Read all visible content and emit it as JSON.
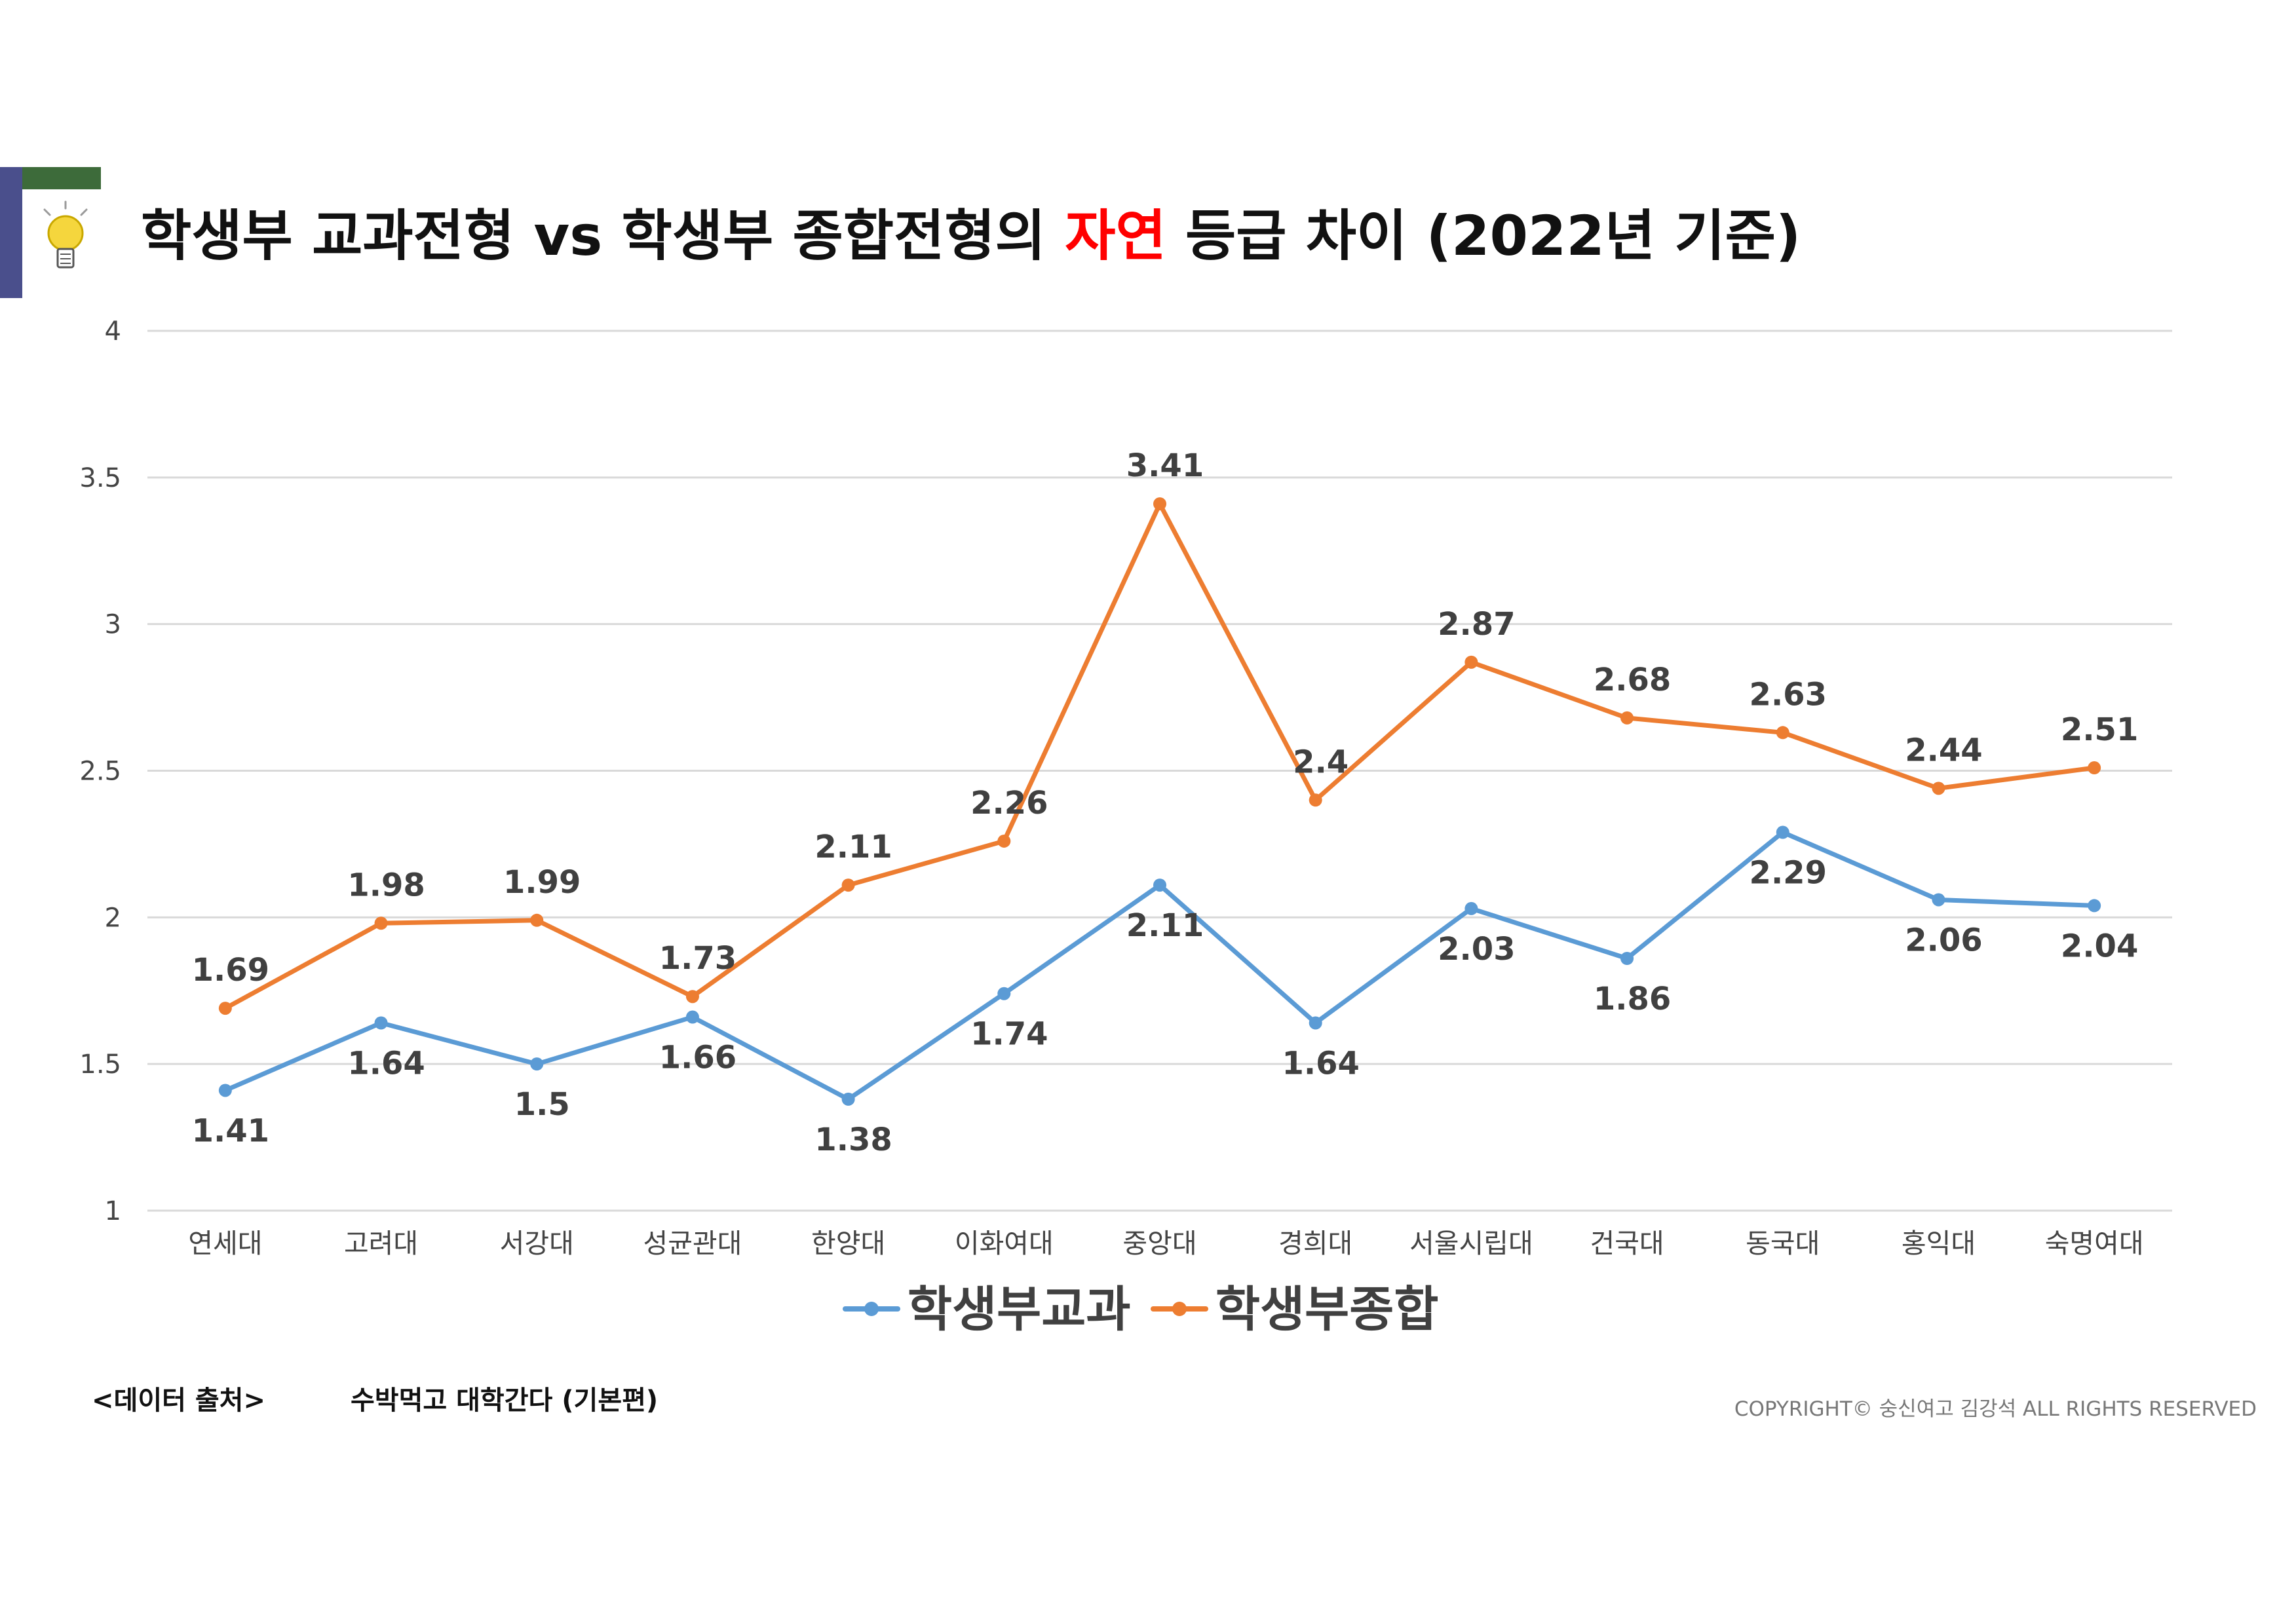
{
  "title": {
    "prefix": "학생부 교과전형 vs 학생부 종합전형의",
    "accent": "자연",
    "suffix": "등급 차이 (2022년 기준)"
  },
  "colors": {
    "accent": "#ff0000",
    "series1": "#5b9bd5",
    "series2": "#ed7d31",
    "grid": "#d9d9d9",
    "deco_blue": "#4a4f8c",
    "deco_green": "#3d6b3a"
  },
  "icons": {
    "decor": "lightbulb-icon"
  },
  "chart_data": {
    "type": "line",
    "categories": [
      "연세대",
      "고려대",
      "서강대",
      "성균관대",
      "한양대",
      "이화여대",
      "중앙대",
      "경희대",
      "서울시립대",
      "건국대",
      "동국대",
      "홍익대",
      "숙명여대"
    ],
    "series": [
      {
        "name": "학생부교과",
        "values": [
          1.41,
          1.64,
          1.5,
          1.66,
          1.38,
          1.74,
          2.11,
          1.64,
          2.03,
          1.86,
          2.29,
          2.06,
          2.04
        ]
      },
      {
        "name": "학생부종합",
        "values": [
          1.69,
          1.98,
          1.99,
          1.73,
          2.11,
          2.26,
          3.41,
          2.4,
          2.87,
          2.68,
          2.63,
          2.44,
          2.51
        ]
      }
    ],
    "ylim": [
      1,
      4
    ],
    "yticks": [
      1,
      1.5,
      2,
      2.5,
      3,
      3.5,
      4
    ],
    "grid": true,
    "legend": "bottom",
    "data_labels": true
  },
  "footer": {
    "source_label": "<데이터 출처>",
    "source_value": "수박먹고 대학간다 (기본편)",
    "copyright": "COPYRIGHT© 숭신여고 김강석  ALL RIGHTS RESERVED"
  }
}
